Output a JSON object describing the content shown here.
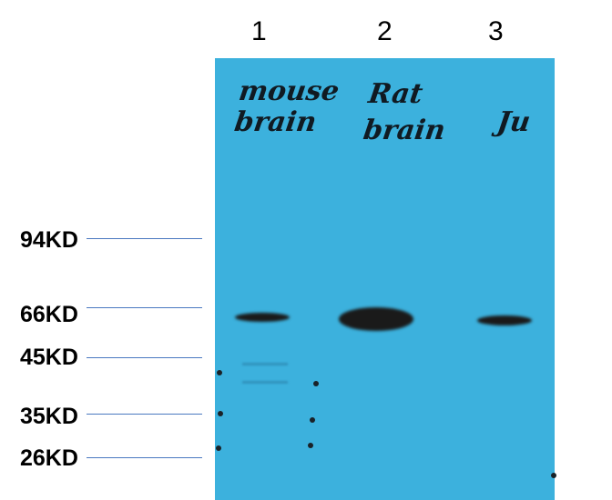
{
  "lanes": [
    "1",
    "2",
    "3"
  ],
  "sample_labels": [
    {
      "line1": "mouse",
      "line2": "brain"
    },
    {
      "line1": "Rat",
      "line2": "brain"
    },
    {
      "line1": "Ju",
      "line2": ""
    }
  ],
  "markers": [
    "94KD",
    "66KD",
    "45KD",
    "35KD",
    "26KD"
  ],
  "colors": {
    "membrane": "#3cb1dd",
    "band": "#1a1a1a",
    "marker_line": "#4a78c0"
  }
}
